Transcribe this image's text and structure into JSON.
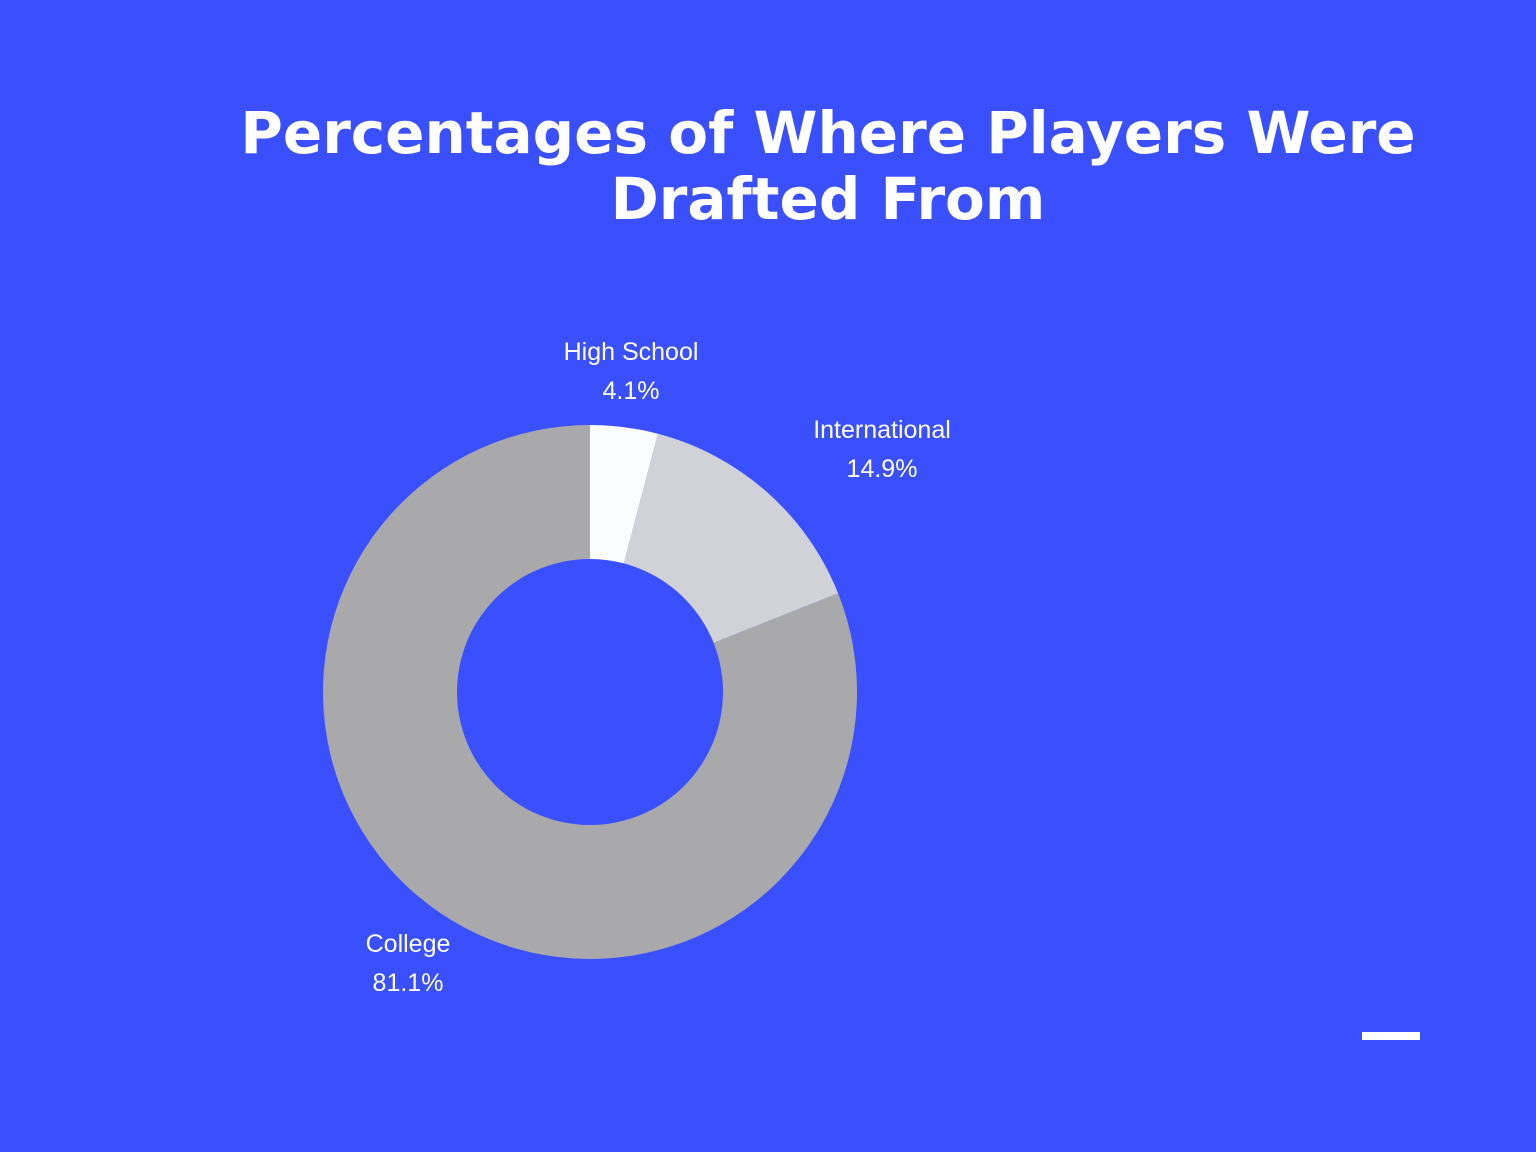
{
  "page": {
    "background_color": "#3a50ff"
  },
  "chart_data": {
    "type": "pie",
    "variant": "donut",
    "title_lines": [
      "Percentages of Where Players Were",
      "Drafted From"
    ],
    "categories": [
      "High School",
      "International",
      "College"
    ],
    "values": [
      4.1,
      14.9,
      81.1
    ],
    "value_labels": [
      "4.1%",
      "14.9%",
      "81.1%"
    ],
    "colors": [
      "#fafcff",
      "#d1d2d7",
      "#a9a9ac"
    ],
    "label_color": "#ffffff",
    "legend": "none"
  },
  "decor": {
    "accent_bar_color": "#ffffff"
  }
}
